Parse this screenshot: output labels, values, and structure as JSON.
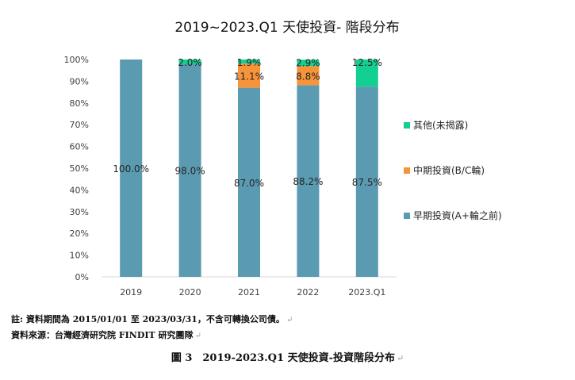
{
  "chart_data": {
    "type": "bar",
    "stacked": true,
    "title": "2019~2023.Q1 天使投資- 階段分布",
    "categories": [
      "2019",
      "2020",
      "2021",
      "2022",
      "2023.Q1"
    ],
    "ylim": [
      0,
      100
    ],
    "y_ticks": [
      "0%",
      "10%",
      "20%",
      "30%",
      "40%",
      "50%",
      "60%",
      "70%",
      "80%",
      "90%",
      "100%"
    ],
    "legend_position": "right",
    "grid": false,
    "series": [
      {
        "name": "早期投資(A+輪之前)",
        "color": "#5b9bb1",
        "values": [
          100.0,
          98.0,
          87.0,
          88.2,
          87.5
        ],
        "labels": [
          "100.0%",
          "98.0%",
          "87.0%",
          "88.2%",
          "87.5%"
        ]
      },
      {
        "name": "中期投資(B/C輪)",
        "color": "#f7943a",
        "values": [
          0,
          0,
          11.1,
          8.8,
          0
        ],
        "labels": [
          "",
          "",
          "11.1%",
          "8.8%",
          ""
        ]
      },
      {
        "name": "其他(未揭露)",
        "color": "#13cf92",
        "values": [
          0,
          2.0,
          1.9,
          2.9,
          12.5
        ],
        "labels": [
          "",
          "2.0%",
          "1.9%",
          "2.9%",
          "12.5%"
        ]
      }
    ],
    "legend_order": [
      2,
      1,
      0
    ]
  },
  "notes": {
    "note1": "註: 資料期間為 2015/01/01 至 2023/03/31，不含可轉換公司債。",
    "note2": "資料來源：台灣經濟研究院 FINDIT 研究團隊",
    "return_mark": "↵"
  },
  "caption": "圖 3　2019-2023.Q1 天使投資-投資階段分布"
}
